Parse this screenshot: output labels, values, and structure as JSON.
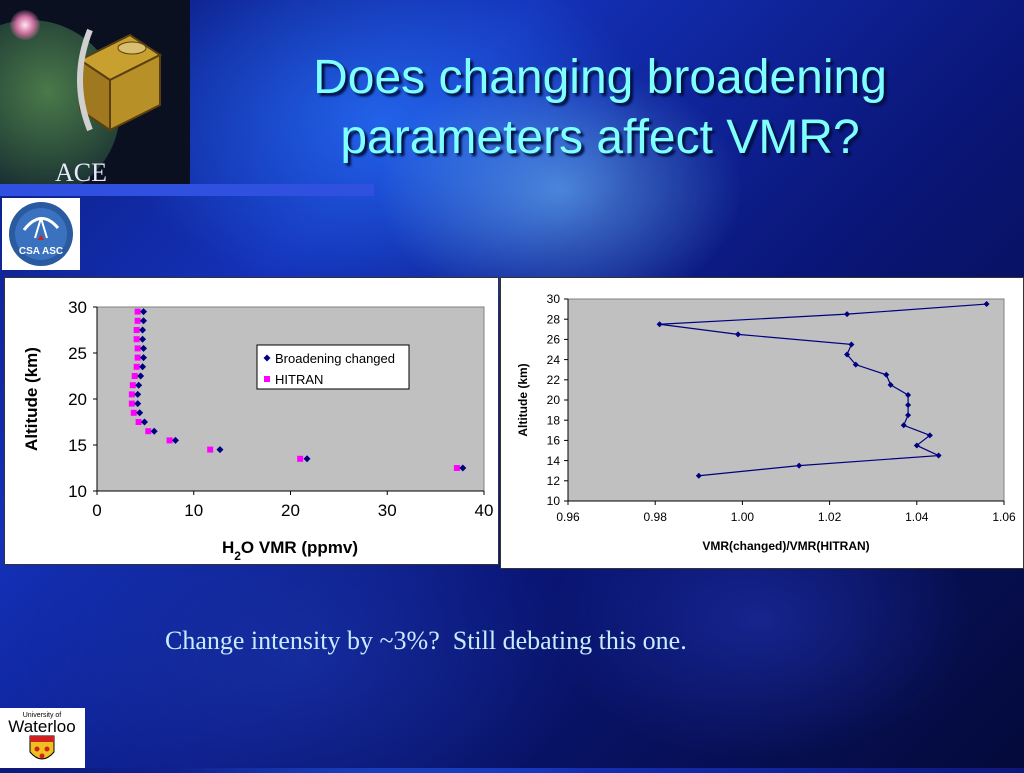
{
  "slide": {
    "title_line1": "Does changing broadening",
    "title_line2": "parameters affect VMR?",
    "ace_label": "ACE",
    "caption": "Change intensity by ~3%?  Still debating this one.",
    "csa_logo_text": "CSA ASC",
    "uw_logo_text_small": "University of",
    "uw_logo_text": "Waterloo"
  },
  "colors": {
    "title": "#7fffff",
    "caption": "#c8ecff",
    "series_navy": "#000080",
    "series_magenta": "#ff00ff",
    "plot_bg": "#c0c0c0"
  },
  "chart_data": [
    {
      "type": "scatter",
      "xlabel": "H2O VMR (ppmv)",
      "ylabel": "Altitude (km)",
      "xlim": [
        0,
        40
      ],
      "ylim": [
        10,
        30
      ],
      "xticks": [
        "0",
        "10",
        "20",
        "30",
        "40"
      ],
      "yticks": [
        "10",
        "15",
        "20",
        "25",
        "30"
      ],
      "legend_position": "top-right",
      "series": [
        {
          "name": "Broadening changed",
          "marker": "diamond",
          "points": [
            [
              4.5,
              29.5
            ],
            [
              4.5,
              28.5
            ],
            [
              4.4,
              27.5
            ],
            [
              4.4,
              26.5
            ],
            [
              4.5,
              25.5
            ],
            [
              4.5,
              24.5
            ],
            [
              4.4,
              23.5
            ],
            [
              4.2,
              22.5
            ],
            [
              4.0,
              21.5
            ],
            [
              3.9,
              20.5
            ],
            [
              3.9,
              19.5
            ],
            [
              4.1,
              18.5
            ],
            [
              4.6,
              17.5
            ],
            [
              5.6,
              16.5
            ],
            [
              7.8,
              15.5
            ],
            [
              12.4,
              14.5
            ],
            [
              21.4,
              13.5
            ],
            [
              37.5,
              12.5
            ]
          ]
        },
        {
          "name": "HITRAN",
          "marker": "square",
          "points": [
            [
              4.2,
              29.5
            ],
            [
              4.2,
              28.5
            ],
            [
              4.1,
              27.5
            ],
            [
              4.1,
              26.5
            ],
            [
              4.2,
              25.5
            ],
            [
              4.2,
              24.5
            ],
            [
              4.1,
              23.5
            ],
            [
              3.9,
              22.5
            ],
            [
              3.7,
              21.5
            ],
            [
              3.6,
              20.5
            ],
            [
              3.6,
              19.5
            ],
            [
              3.8,
              18.5
            ],
            [
              4.3,
              17.5
            ],
            [
              5.3,
              16.5
            ],
            [
              7.5,
              15.5
            ],
            [
              11.7,
              14.5
            ],
            [
              21.0,
              13.5
            ],
            [
              37.2,
              12.5
            ]
          ]
        }
      ]
    },
    {
      "type": "line",
      "xlabel": "VMR(changed)/VMR(HITRAN)",
      "ylabel": "Altitude (km)",
      "xlim": [
        0.96,
        1.06
      ],
      "ylim": [
        10,
        30
      ],
      "xticks": [
        "0.96",
        "0.98",
        "1.00",
        "1.02",
        "1.04",
        "1.06"
      ],
      "yticks": [
        "10",
        "12",
        "14",
        "16",
        "18",
        "20",
        "22",
        "24",
        "26",
        "28",
        "30"
      ],
      "series": [
        {
          "marker": "diamond",
          "points": [
            [
              0.99,
              12.5
            ],
            [
              1.013,
              13.5
            ],
            [
              1.045,
              14.5
            ],
            [
              1.04,
              15.5
            ],
            [
              1.043,
              16.5
            ],
            [
              1.037,
              17.5
            ],
            [
              1.038,
              18.5
            ],
            [
              1.038,
              19.5
            ],
            [
              1.038,
              20.5
            ],
            [
              1.034,
              21.5
            ],
            [
              1.033,
              22.5
            ],
            [
              1.026,
              23.5
            ],
            [
              1.024,
              24.5
            ],
            [
              1.025,
              25.5
            ],
            [
              0.999,
              26.5
            ],
            [
              0.981,
              27.5
            ],
            [
              1.024,
              28.5
            ],
            [
              1.056,
              29.5
            ]
          ]
        }
      ]
    }
  ]
}
